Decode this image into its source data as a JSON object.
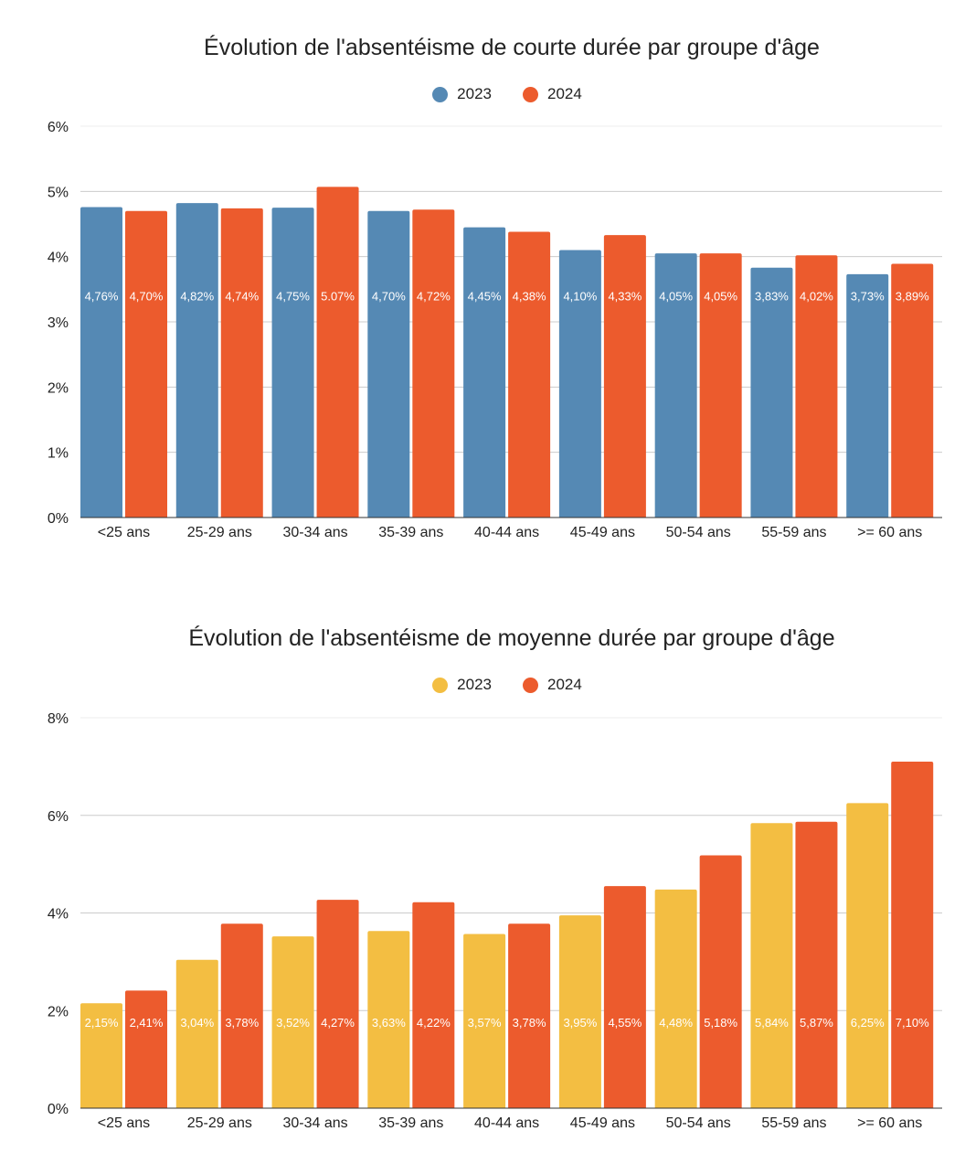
{
  "chart_data": [
    {
      "type": "bar",
      "title": "Évolution de l'absentéisme de courte durée par groupe d'âge",
      "categories": [
        "<25 ans",
        "25-29 ans",
        "30-34 ans",
        "35-39 ans",
        "40-44 ans",
        "45-49 ans",
        "50-54 ans",
        "55-59 ans",
        ">= 60 ans"
      ],
      "series": [
        {
          "name": "2023",
          "color": "#5589b4",
          "values": [
            4.76,
            4.82,
            4.75,
            4.7,
            4.45,
            4.1,
            4.05,
            3.83,
            3.73
          ],
          "labels": [
            "4,76%",
            "4,82%",
            "4,75%",
            "4,70%",
            "4,45%",
            "4,10%",
            "4,05%",
            "3,83%",
            "3,73%"
          ]
        },
        {
          "name": "2024",
          "color": "#ec5b2d",
          "values": [
            4.7,
            4.74,
            5.07,
            4.72,
            4.38,
            4.33,
            4.05,
            4.02,
            3.89
          ],
          "labels": [
            "4,70%",
            "4,74%",
            "5.07%",
            "4,72%",
            "4,38%",
            "4,33%",
            "4,05%",
            "4,02%",
            "3,89%"
          ]
        }
      ],
      "ylim": [
        0,
        6
      ],
      "yticks": [
        "0%",
        "1%",
        "2%",
        "3%",
        "4%",
        "5%",
        "6%"
      ],
      "ytick_values": [
        0,
        1,
        2,
        3,
        4,
        5,
        6
      ],
      "label_value": 3.4,
      "xlabel": "",
      "ylabel": "",
      "grid": true,
      "legend_position": "top-center"
    },
    {
      "type": "bar",
      "title": "Évolution de l'absentéisme de moyenne durée par groupe d'âge",
      "categories": [
        "<25 ans",
        "25-29 ans",
        "30-34 ans",
        "35-39 ans",
        "40-44 ans",
        "45-49 ans",
        "50-54 ans",
        "55-59 ans",
        ">= 60 ans"
      ],
      "series": [
        {
          "name": "2023",
          "color": "#f3be42",
          "values": [
            2.15,
            3.04,
            3.52,
            3.63,
            3.57,
            3.95,
            4.48,
            5.84,
            6.25
          ],
          "labels": [
            "2,15%",
            "3,04%",
            "3,52%",
            "3,63%",
            "3,57%",
            "3,95%",
            "4,48%",
            "5,84%",
            "6,25%"
          ]
        },
        {
          "name": "2024",
          "color": "#ec5b2d",
          "values": [
            2.41,
            3.78,
            4.27,
            4.22,
            3.78,
            4.55,
            5.18,
            5.87,
            7.1
          ],
          "labels": [
            "2,41%",
            "3,78%",
            "4,27%",
            "4,22%",
            "3,78%",
            "4,55%",
            "5,18%",
            "5,87%",
            "7,10%"
          ]
        }
      ],
      "ylim": [
        0,
        8
      ],
      "yticks": [
        "0%",
        "2%",
        "4%",
        "6%",
        "8%"
      ],
      "ytick_values": [
        0,
        2,
        4,
        6,
        8
      ],
      "label_value": 1.76,
      "xlabel": "",
      "ylabel": "",
      "grid": true,
      "legend_position": "top-center"
    }
  ]
}
